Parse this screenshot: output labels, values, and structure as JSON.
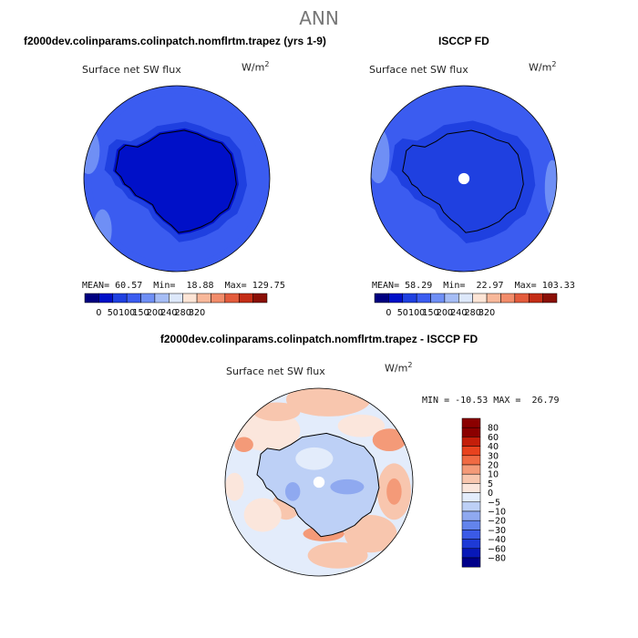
{
  "figure": {
    "title": "ANN",
    "colors": {
      "main_palette": [
        "#000080",
        "#0010c8",
        "#1f40e0",
        "#3b5cf0",
        "#6f8ff5",
        "#a6bdf5",
        "#dde8fa",
        "#fde5d6",
        "#f8b89a",
        "#f28c6a",
        "#e35b3c",
        "#c42d16",
        "#8a0f06"
      ],
      "diff_palette": [
        "#00008a",
        "#0818b8",
        "#1e3ad6",
        "#3b5ae6",
        "#6384ec",
        "#8fa9f0",
        "#bdd0f6",
        "#e3ecfb",
        "#fbe6dc",
        "#f8c6ae",
        "#f49a78",
        "#f06a43",
        "#e8421e",
        "#c41e0a",
        "#8b0000"
      ],
      "land_outline": "#000000"
    }
  },
  "chart_data": [
    {
      "type": "heatmap",
      "projection": "south-polar-stereographic",
      "title": "f2000dev.colinparams.colinpatch.nomflrtm.trapez (yrs 1-9)",
      "variable": "Surface net SW flux",
      "units": "W/m",
      "units_superscript": "2",
      "stats": {
        "mean_label": "MEAN=",
        "mean": "60.57",
        "min_label": "Min=",
        "min": "18.88",
        "max_label": "Max=",
        "max": "129.75"
      },
      "colorbar": {
        "orientation": "horizontal",
        "tick_labels": [
          "0",
          "50",
          "100",
          "150",
          "200",
          "240",
          "280",
          "320"
        ]
      }
    },
    {
      "type": "heatmap",
      "projection": "south-polar-stereographic",
      "title": "ISCCP FD",
      "variable": "Surface net SW flux",
      "units": "W/m",
      "units_superscript": "2",
      "stats": {
        "mean_label": "MEAN=",
        "mean": "58.29",
        "min_label": "Min=",
        "min": "22.97",
        "max_label": "Max=",
        "max": "103.33"
      },
      "colorbar": {
        "orientation": "horizontal",
        "tick_labels": [
          "0",
          "50",
          "100",
          "150",
          "200",
          "240",
          "280",
          "320"
        ]
      }
    },
    {
      "type": "heatmap",
      "projection": "south-polar-stereographic",
      "title": "f2000dev.colinparams.colinpatch.nomflrtm.trapez - ISCCP FD",
      "variable": "Surface net SW flux",
      "units": "W/m",
      "units_superscript": "2",
      "stats": {
        "min_label": "MIN =",
        "min": "-10.53",
        "max_label": "MAX =",
        "max": "26.79"
      },
      "colorbar": {
        "orientation": "vertical",
        "tick_labels": [
          "80",
          "60",
          "40",
          "30",
          "20",
          "10",
          "5",
          "0",
          "−5",
          "−10",
          "−20",
          "−30",
          "−40",
          "−60",
          "−80"
        ]
      }
    }
  ]
}
